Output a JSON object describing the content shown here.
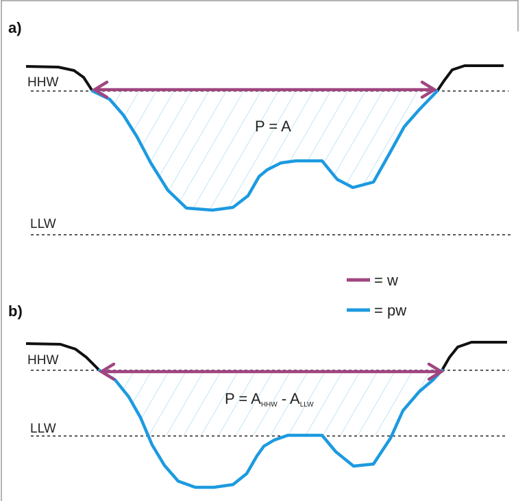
{
  "colors": {
    "width_arrow": "#a0457f",
    "wetted_perimeter": "#1c9ae0",
    "hatch": "#9fd3f0",
    "bank": "#111111",
    "waterline": "#222222",
    "frame": "#9a9a9a"
  },
  "panel_a": {
    "label": "a)",
    "hhw_label": "HHW",
    "llw_label": "LLW",
    "equation": "P = A"
  },
  "panel_b": {
    "label": "b)",
    "hhw_label": "HHW",
    "llw_label": "LLW",
    "equation_prefix": "P = A",
    "equation_sub1": "HHW",
    "equation_mid": " - A",
    "equation_sub2": "LLW"
  },
  "legend": {
    "items": [
      {
        "symbol": "purple-line",
        "text": "= w"
      },
      {
        "symbol": "blue-line",
        "text": "= pw"
      }
    ]
  }
}
